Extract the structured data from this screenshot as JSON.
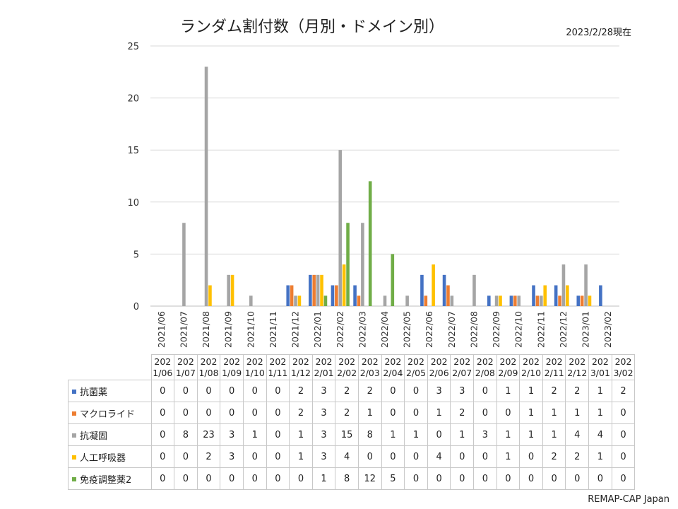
{
  "header": {
    "title": "ランダム割付数（月別・ドメイン別）",
    "as_of": "2023/2/28現在"
  },
  "footer": {
    "credit": "REMAP-CAP Japan"
  },
  "chart_data": {
    "type": "bar",
    "title": "ランダム割付数（月別・ドメイン別）",
    "xlabel": "",
    "ylabel": "",
    "ylim": [
      0,
      25
    ],
    "yticks": [
      0,
      5,
      10,
      15,
      20,
      25
    ],
    "grid": true,
    "legend": "data table",
    "categories": [
      "2021/06",
      "2021/07",
      "2021/08",
      "2021/09",
      "2021/10",
      "2021/11",
      "2021/12",
      "2022/01",
      "2022/02",
      "2022/03",
      "2022/04",
      "2022/05",
      "2022/06",
      "2022/07",
      "2022/08",
      "2022/09",
      "2022/10",
      "2022/11",
      "2022/12",
      "2023/01",
      "2023/02"
    ],
    "table_headers": [
      [
        "202",
        "1/06"
      ],
      [
        "202",
        "1/07"
      ],
      [
        "202",
        "1/08"
      ],
      [
        "202",
        "1/09"
      ],
      [
        "202",
        "1/10"
      ],
      [
        "202",
        "1/11"
      ],
      [
        "202",
        "1/12"
      ],
      [
        "202",
        "2/01"
      ],
      [
        "202",
        "2/02"
      ],
      [
        "202",
        "2/03"
      ],
      [
        "202",
        "2/04"
      ],
      [
        "202",
        "2/05"
      ],
      [
        "202",
        "2/06"
      ],
      [
        "202",
        "2/07"
      ],
      [
        "202",
        "2/08"
      ],
      [
        "202",
        "2/09"
      ],
      [
        "202",
        "2/10"
      ],
      [
        "202",
        "2/11"
      ],
      [
        "202",
        "2/12"
      ],
      [
        "202",
        "3/01"
      ],
      [
        "202",
        "3/02"
      ]
    ],
    "series": [
      {
        "name": "抗菌薬",
        "color": "#4472c4",
        "values": [
          0,
          0,
          0,
          0,
          0,
          0,
          2,
          3,
          2,
          2,
          0,
          0,
          3,
          3,
          0,
          1,
          1,
          2,
          2,
          1,
          2
        ]
      },
      {
        "name": "マクロライド",
        "color": "#ed7d31",
        "values": [
          0,
          0,
          0,
          0,
          0,
          0,
          2,
          3,
          2,
          1,
          0,
          0,
          1,
          2,
          0,
          0,
          1,
          1,
          1,
          1,
          0
        ]
      },
      {
        "name": "抗凝固",
        "color": "#a5a5a5",
        "values": [
          0,
          8,
          23,
          3,
          1,
          0,
          1,
          3,
          15,
          8,
          1,
          1,
          0,
          1,
          3,
          1,
          1,
          1,
          4,
          4,
          0
        ]
      },
      {
        "name": "人工呼吸器",
        "color": "#ffc000",
        "values": [
          0,
          0,
          2,
          3,
          0,
          0,
          1,
          3,
          4,
          0,
          0,
          0,
          4,
          0,
          0,
          1,
          0,
          2,
          2,
          1,
          0
        ]
      },
      {
        "name": "免疫調整薬2",
        "color": "#70ad47",
        "values": [
          0,
          0,
          0,
          0,
          0,
          0,
          0,
          1,
          8,
          12,
          5,
          0,
          0,
          0,
          0,
          0,
          0,
          0,
          0,
          0,
          0
        ]
      }
    ]
  }
}
